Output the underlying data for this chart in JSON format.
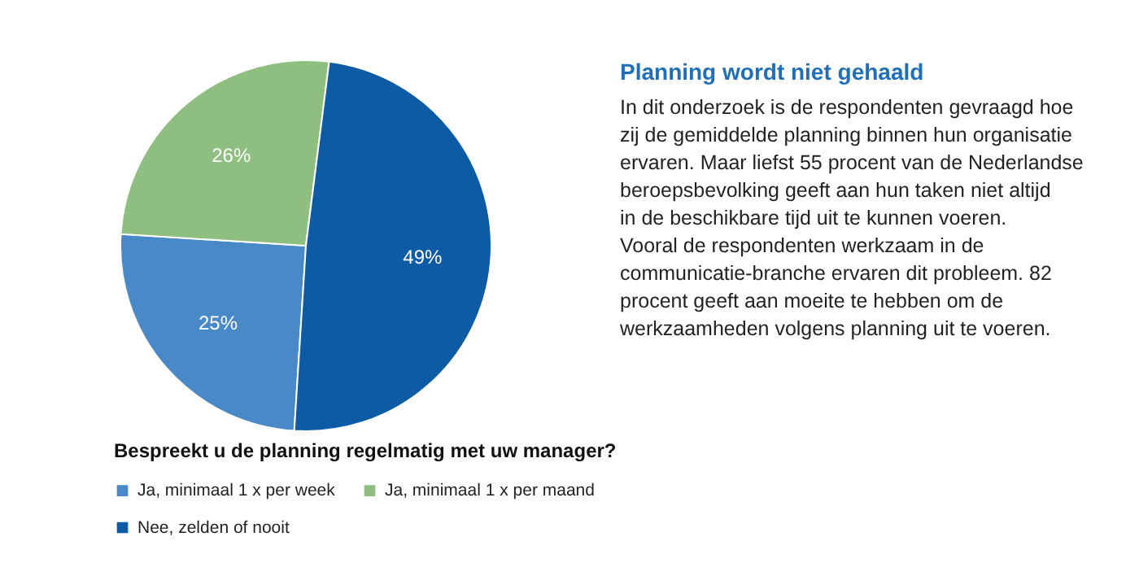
{
  "chart_data": {
    "type": "pie",
    "title": "Planning wordt niet gehaald",
    "legend_title": "Bespreekt u de planning regelmatig met uw manager?",
    "categories": [
      "Ja, minimaal 1 x per week",
      "Ja, minimaal 1 x per maand",
      "Nee, zelden of nooit"
    ],
    "values": [
      25,
      26,
      49
    ],
    "colors": [
      "#4a89c8",
      "#8fbf80",
      "#0d5ba4"
    ],
    "value_labels": [
      "25%",
      "26%",
      "49%"
    ],
    "legend": "bottom",
    "annotations": [
      "In dit onderzoek is de respondenten gevraagd hoe zij de gemiddelde planning binnen hun organisatie ervaren. Maar liefst 55 procent van de Nederlandse beroepsbevolking geeft aan hun taken niet altijd in de beschikbare tijd uit te kunnen voeren. Vooral de respondenten werkzaam in de communicatie-branche ervaren dit probleem. 82 procent geeft aan moeite te hebben om de werkzaamheden volgens planning uit te voeren."
    ]
  }
}
